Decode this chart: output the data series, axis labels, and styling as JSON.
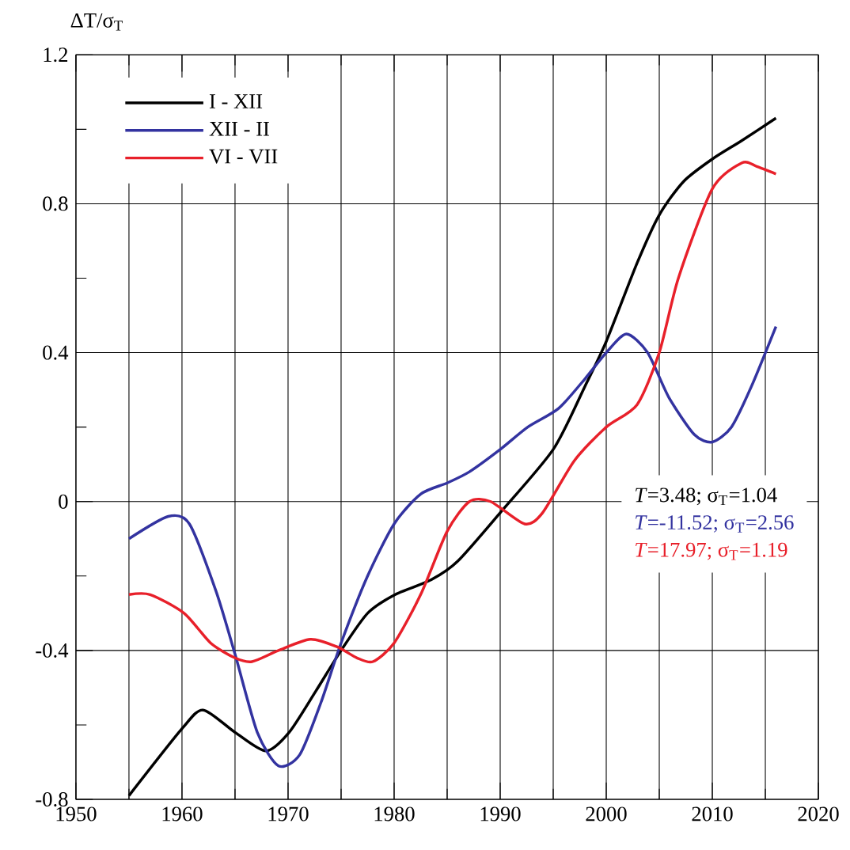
{
  "chart_data": {
    "type": "line",
    "ylabel": "ΔT/σ$_{T}$",
    "xlim": [
      1950,
      2020
    ],
    "xticks": [
      1950,
      1960,
      1970,
      1980,
      1990,
      2000,
      2010,
      2020
    ],
    "ylim": [
      -0.8,
      1.2
    ],
    "yticks": [
      -0.8,
      -0.4,
      0,
      0.4,
      0.8,
      1.2
    ],
    "grid": true,
    "legend": "top left",
    "series": [
      {
        "name": "I - XII",
        "color": "#000000",
        "x": [
          1955,
          1960,
          1962,
          1965,
          1967.9,
          1970.1,
          1972.6,
          1975,
          1977.5,
          1980.1,
          1983.5,
          1986,
          1990,
          1995,
          1998,
          2000,
          2002.9,
          2005,
          2007.3,
          2010,
          2012.8,
          2016
        ],
        "values": [
          -0.79,
          -0.61,
          -0.56,
          -0.62,
          -0.67,
          -0.62,
          -0.51,
          -0.4,
          -0.3,
          -0.25,
          -0.21,
          -0.16,
          -0.03,
          0.14,
          0.31,
          0.43,
          0.64,
          0.77,
          0.86,
          0.92,
          0.97,
          1.03
        ]
      },
      {
        "name": "XII - II",
        "color": "#3333a0",
        "x": [
          1955,
          1958.7,
          1960.7,
          1963.2,
          1965,
          1967.1,
          1969.1,
          1971.1,
          1973.1,
          1975,
          1977.5,
          1980,
          1982.5,
          1985,
          1987.1,
          1990,
          1992.6,
          1995.5,
          1998,
          2000,
          2001.9,
          2003.9,
          2005.9,
          2008.3,
          2010,
          2011.8,
          2013.7,
          2016
        ],
        "values": [
          -0.1,
          -0.04,
          -0.06,
          -0.24,
          -0.41,
          -0.62,
          -0.71,
          -0.68,
          -0.54,
          -0.38,
          -0.2,
          -0.06,
          0.02,
          0.05,
          0.08,
          0.14,
          0.2,
          0.25,
          0.33,
          0.4,
          0.45,
          0.4,
          0.28,
          0.18,
          0.16,
          0.2,
          0.31,
          0.47
        ]
      },
      {
        "name": "VI - VII",
        "color": "#e8202a",
        "x": [
          1955,
          1957,
          1960.2,
          1962.7,
          1965,
          1966.6,
          1969.1,
          1972.1,
          1974.6,
          1976.5,
          1978,
          1980,
          1982.5,
          1985,
          1987.1,
          1989.1,
          1992.3,
          1994,
          1997,
          2000,
          2002.9,
          2005,
          2006.8,
          2010,
          2012.8,
          2014.2,
          2016
        ],
        "values": [
          -0.25,
          -0.25,
          -0.3,
          -0.38,
          -0.42,
          -0.43,
          -0.4,
          -0.37,
          -0.39,
          -0.42,
          -0.43,
          -0.38,
          -0.25,
          -0.08,
          0,
          0,
          -0.06,
          -0.03,
          0.11,
          0.2,
          0.26,
          0.4,
          0.6,
          0.84,
          0.91,
          0.9,
          0.88
        ]
      }
    ],
    "annotations": [
      "*T*=3.48;   σ$_{T}$=1.04",
      "*T*=-11.52;  σ$_{T}$=2.56",
      "*T*=17.97;   σ$_{T}$=1.19"
    ]
  }
}
